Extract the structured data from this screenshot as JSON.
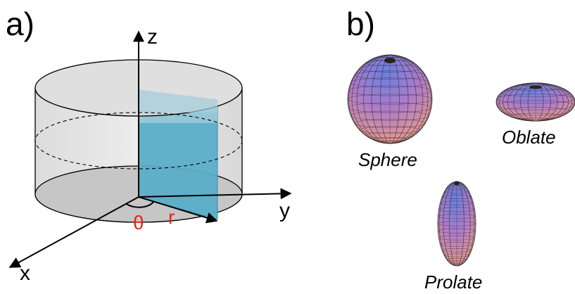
{
  "panel_a": {
    "label": "a)",
    "axes": {
      "z": "z",
      "y": "y",
      "x": "x"
    },
    "params": {
      "theta": "θ",
      "r": "r"
    }
  },
  "panel_b": {
    "label": "b)",
    "shapes": [
      {
        "name": "Sphere"
      },
      {
        "name": "Oblate"
      },
      {
        "name": "Prolate"
      }
    ]
  },
  "colors": {
    "cylinder_wall": "#e6e6e6",
    "cylinder_cap": "#d6d6d6",
    "cylinder_bottom": "#c4c4c4",
    "section_plane": "#5aaec8",
    "param_text": "#e8231a",
    "ellipsoid_top": "#5f7ed8",
    "ellipsoid_mid": "#c37fba",
    "ellipsoid_bottom": "#e89a8a"
  }
}
